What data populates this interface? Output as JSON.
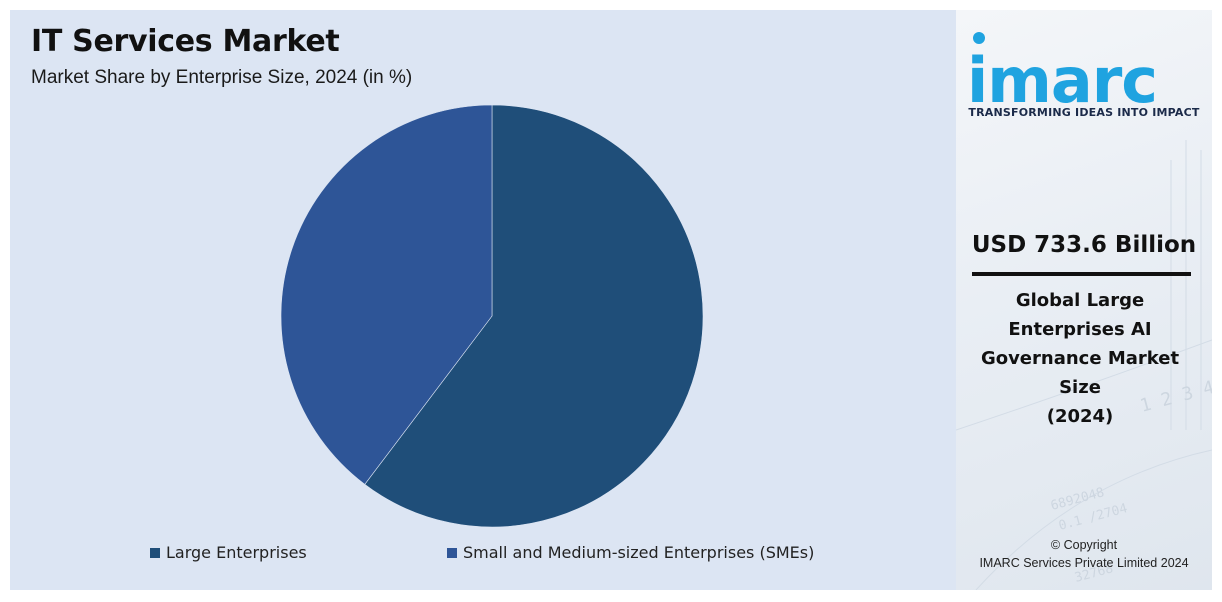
{
  "header": {
    "title": "IT Services Market",
    "subtitle": "Market Share by Enterprise Size, 2024 (in %)"
  },
  "chart_data": {
    "type": "pie",
    "title": "IT Services Market",
    "subtitle": "Market Share by Enterprise Size, 2024 (in %)",
    "categories": [
      "Large Enterprises",
      "Small and Medium-sized Enterprises (SMEs)"
    ],
    "values": [
      60.3,
      39.7
    ],
    "colors": [
      "#1f4e79",
      "#2e5597"
    ],
    "legend": "bottom"
  },
  "legend": {
    "items": [
      {
        "label": "Large Enterprises",
        "color": "#1f4e79"
      },
      {
        "label": "Small and Medium-sized Enterprises (SMEs)",
        "color": "#2e5597"
      }
    ]
  },
  "side": {
    "brand": "imarc",
    "brand_color": "#1fa3e0",
    "tagline": "TRANSFORMING IDEAS INTO IMPACT",
    "stat_value": "USD 733.6 Billion",
    "stat_label_lines": [
      "Global Large",
      "Enterprises AI",
      "Governance Market",
      "Size",
      "(2024)"
    ],
    "copyright_line1": "© Copyright",
    "copyright_line2": "IMARC Services Private Limited 2024"
  }
}
